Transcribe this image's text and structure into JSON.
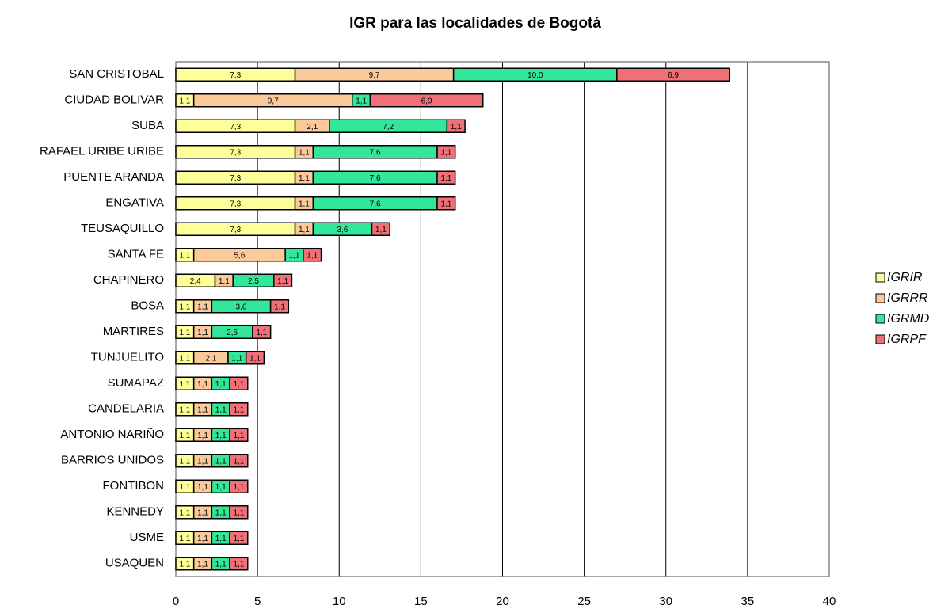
{
  "chart_data": {
    "type": "bar",
    "orientation": "horizontal",
    "stacked": true,
    "title": "IGR para las localidades de Bogotá",
    "categories": [
      "SAN CRISTOBAL",
      "CIUDAD BOLIVAR",
      "SUBA",
      "RAFAEL URIBE URIBE",
      "PUENTE ARANDA",
      "ENGATIVA",
      "TEUSAQUILLO",
      "SANTA FE",
      "CHAPINERO",
      "BOSA",
      "MARTIRES",
      "TUNJUELITO",
      "SUMAPAZ",
      "CANDELARIA",
      "ANTONIO NARIÑO",
      "BARRIOS UNIDOS",
      "FONTIBON",
      "KENNEDY",
      "USME",
      "USAQUEN"
    ],
    "series": [
      {
        "name": "IGRIR",
        "color": "#ffff99",
        "values": [
          7.3,
          1.1,
          7.3,
          7.3,
          7.3,
          7.3,
          7.3,
          1.1,
          2.4,
          1.1,
          1.1,
          1.1,
          1.1,
          1.1,
          1.1,
          1.1,
          1.1,
          1.1,
          1.1,
          1.1
        ],
        "value_labels": [
          "7,3",
          "1,1",
          "7,3",
          "7,3",
          "7,3",
          "7,3",
          "7,3",
          "1,1",
          "2,4",
          "1,1",
          "1,1",
          "1,1",
          "1,1",
          "1,1",
          "1,1",
          "1,1",
          "1,1",
          "1,1",
          "1,1",
          "1,1"
        ]
      },
      {
        "name": "IGRRR",
        "color": "#fcc99b",
        "values": [
          9.7,
          9.7,
          2.1,
          1.1,
          1.1,
          1.1,
          1.1,
          5.6,
          1.1,
          1.1,
          1.1,
          2.1,
          1.1,
          1.1,
          1.1,
          1.1,
          1.1,
          1.1,
          1.1,
          1.1
        ],
        "value_labels": [
          "9,7",
          "9,7",
          "2,1",
          "1,1",
          "1,1",
          "1,1",
          "1,1",
          "5,6",
          "1,1",
          "1,1",
          "1,1",
          "2,1",
          "1,1",
          "1,1",
          "1,1",
          "1,1",
          "1,1",
          "1,1",
          "1,1",
          "1,1"
        ]
      },
      {
        "name": "IGRMD",
        "color": "#33e699",
        "values": [
          10.0,
          1.1,
          7.2,
          7.6,
          7.6,
          7.6,
          3.6,
          1.1,
          2.5,
          3.6,
          2.5,
          1.1,
          1.1,
          1.1,
          1.1,
          1.1,
          1.1,
          1.1,
          1.1,
          1.1
        ],
        "value_labels": [
          "10,0",
          "1,1",
          "7,2",
          "7,6",
          "7,6",
          "7,6",
          "3,6",
          "1,1",
          "2,5",
          "3,6",
          "2,5",
          "1,1",
          "1,1",
          "1,1",
          "1,1",
          "1,1",
          "1,1",
          "1,1",
          "1,1",
          "1,1"
        ]
      },
      {
        "name": "IGRPF",
        "color": "#f07078",
        "values": [
          6.9,
          6.9,
          1.1,
          1.1,
          1.1,
          1.1,
          1.1,
          1.1,
          1.1,
          1.1,
          1.1,
          1.1,
          1.1,
          1.1,
          1.1,
          1.1,
          1.1,
          1.1,
          1.1,
          1.1
        ],
        "value_labels": [
          "6,9",
          "6,9",
          "1,1",
          "1,1",
          "1,1",
          "1,1",
          "1,1",
          "1,1",
          "1,1",
          "1,1",
          "1,1",
          "1,1",
          "1,1",
          "1,1",
          "1,1",
          "1,1",
          "1,1",
          "1,1",
          "1,1",
          "1,1"
        ]
      }
    ],
    "xlim": [
      0,
      40
    ],
    "xticks": [
      0,
      5,
      10,
      15,
      20,
      25,
      30,
      35,
      40
    ],
    "grid": true,
    "legend": "right"
  }
}
